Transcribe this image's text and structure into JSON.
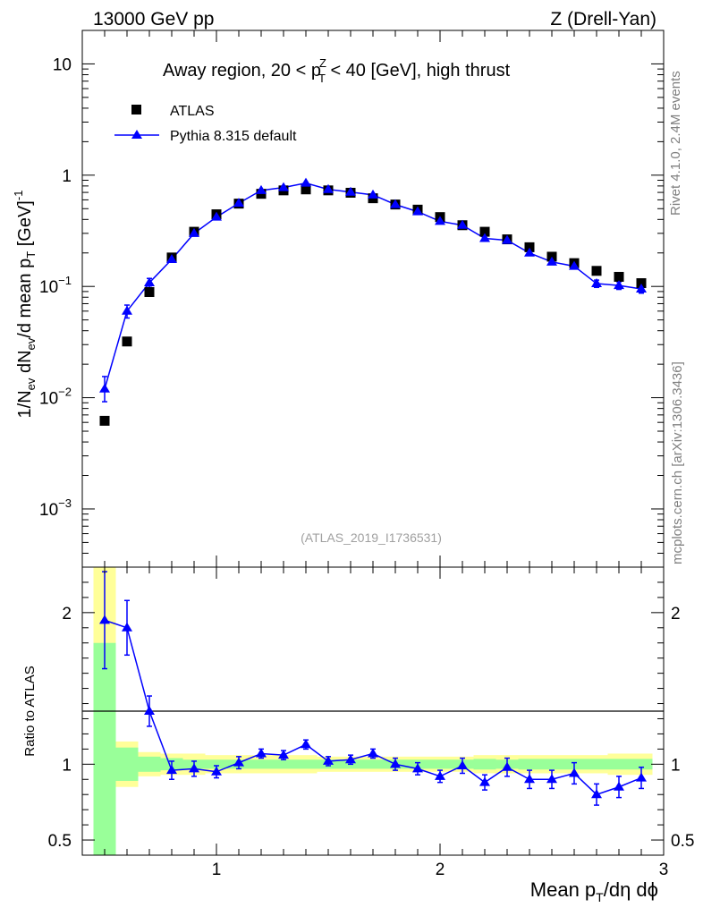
{
  "header": {
    "energy": "13000 GeV pp",
    "process": "Z (Drell-Yan)"
  },
  "side_labels": {
    "rivet": "Rivet 4.1.0,  2.4M events",
    "source": "mcplots.cern.ch [arXiv:1306.3436]"
  },
  "chart_data": {
    "type": "scatter",
    "title": {
      "main": "Away region, 20 < p",
      "sup": "Z",
      "sub": "T",
      "tail": " < 40 [GeV], high thrust"
    },
    "analysis_id": "(ATLAS_2019_I1736531)",
    "legend": {
      "placement": "top-left",
      "entries": [
        "ATLAS",
        "Pythia 8.315 default"
      ]
    },
    "xlabel": {
      "pre": "Mean p",
      "sub": "T",
      "post": "/dη dϕ"
    },
    "ylabel": {
      "t1": "1/N",
      "s1": "ev",
      "t2": " dN",
      "s2": "ev",
      "t3": "/d mean p",
      "s3": "T",
      "t4": " [GeV]",
      "sup": "-1"
    },
    "ratio_ylabel": "Ratio to ATLAS",
    "xlim": [
      0.4,
      3.0
    ],
    "ylim": [
      0.0003,
      20
    ],
    "yscale": "log",
    "ratio_ylim": [
      0.4,
      2.3
    ],
    "x_ticks": [
      {
        "v": 1,
        "label": "1"
      },
      {
        "v": 2,
        "label": "2"
      },
      {
        "v": 3,
        "label": "3"
      }
    ],
    "y_ticks": [
      {
        "v": 10,
        "base": "10",
        "exp": ""
      },
      {
        "v": 1,
        "base": "1",
        "exp": ""
      },
      {
        "v": 0.1,
        "base": "10",
        "exp": "−1"
      },
      {
        "v": 0.01,
        "base": "10",
        "exp": "−2"
      },
      {
        "v": 0.001,
        "base": "10",
        "exp": "−3"
      }
    ],
    "ratio_ticks": [
      {
        "v": 2,
        "label": "2"
      },
      {
        "v": 1,
        "label": "1"
      },
      {
        "v": 0.5,
        "label": "0.5"
      }
    ],
    "x": [
      0.5,
      0.6,
      0.7,
      0.8,
      0.9,
      1.0,
      1.1,
      1.2,
      1.3,
      1.4,
      1.5,
      1.6,
      1.7,
      1.8,
      1.9,
      2.0,
      2.1,
      2.2,
      2.3,
      2.4,
      2.5,
      2.6,
      2.7,
      2.8,
      2.9
    ],
    "series": [
      {
        "name": "ATLAS",
        "color": "#000000",
        "marker": "square",
        "values": [
          0.0062,
          0.032,
          0.089,
          0.182,
          0.31,
          0.445,
          0.555,
          0.68,
          0.73,
          0.745,
          0.73,
          0.695,
          0.62,
          0.545,
          0.49,
          0.42,
          0.355,
          0.31,
          0.265,
          0.225,
          0.185,
          0.162,
          0.138,
          0.122,
          0.107
        ]
      },
      {
        "name": "Pythia 8.315 default",
        "color": "#0000ff",
        "marker": "triangle",
        "values": [
          0.012,
          0.06,
          0.108,
          0.175,
          0.3,
          0.42,
          0.56,
          0.73,
          0.775,
          0.85,
          0.745,
          0.705,
          0.665,
          0.545,
          0.47,
          0.385,
          0.355,
          0.27,
          0.26,
          0.2,
          0.166,
          0.152,
          0.106,
          0.102,
          0.095
        ],
        "err_lo": [
          0.0028,
          0.008,
          0.01,
          0.01,
          0.013,
          0.015,
          0.015,
          0.015,
          0.015,
          0.015,
          0.015,
          0.015,
          0.015,
          0.012,
          0.011,
          0.01,
          0.009,
          0.008,
          0.008,
          0.007,
          0.007,
          0.007,
          0.008,
          0.008,
          0.008
        ],
        "err_hi": [
          0.0035,
          0.008,
          0.01,
          0.01,
          0.013,
          0.015,
          0.015,
          0.015,
          0.015,
          0.015,
          0.015,
          0.015,
          0.015,
          0.012,
          0.011,
          0.01,
          0.009,
          0.008,
          0.008,
          0.007,
          0.007,
          0.007,
          0.008,
          0.008,
          0.008
        ],
        "ratio": [
          1.95,
          1.9,
          1.35,
          0.96,
          0.97,
          0.95,
          1.01,
          1.07,
          1.06,
          1.13,
          1.02,
          1.03,
          1.07,
          1.0,
          0.97,
          0.92,
          0.99,
          0.88,
          0.98,
          0.9,
          0.9,
          0.94,
          0.8,
          0.85,
          0.91
        ],
        "ratio_err": [
          0.32,
          0.18,
          0.1,
          0.06,
          0.05,
          0.04,
          0.04,
          0.03,
          0.03,
          0.03,
          0.03,
          0.03,
          0.03,
          0.04,
          0.04,
          0.04,
          0.05,
          0.05,
          0.06,
          0.06,
          0.06,
          0.07,
          0.07,
          0.07,
          0.07
        ]
      }
    ],
    "bands": {
      "edges": [
        0.45,
        0.55,
        0.65,
        0.75,
        0.85,
        0.95,
        1.05,
        1.15,
        1.25,
        1.35,
        1.45,
        1.55,
        1.65,
        1.75,
        1.85,
        1.95,
        2.05,
        2.15,
        2.25,
        2.35,
        2.45,
        2.55,
        2.65,
        2.75,
        2.85,
        2.95
      ],
      "inner": [
        0.8,
        0.11,
        0.05,
        0.04,
        0.03,
        0.03,
        0.03,
        0.03,
        0.03,
        0.03,
        0.03,
        0.03,
        0.03,
        0.03,
        0.03,
        0.03,
        0.03,
        0.035,
        0.03,
        0.035,
        0.035,
        0.035,
        0.035,
        0.035,
        0.035
      ],
      "outer": [
        1.3,
        0.15,
        0.08,
        0.07,
        0.07,
        0.06,
        0.06,
        0.06,
        0.06,
        0.06,
        0.05,
        0.05,
        0.05,
        0.05,
        0.05,
        0.05,
        0.05,
        0.06,
        0.06,
        0.06,
        0.06,
        0.06,
        0.06,
        0.07,
        0.07
      ]
    },
    "colors": {
      "inner_band": "#99ff99",
      "outer_band": "#ffff99",
      "mc": "#0000ff",
      "data": "#000000"
    }
  }
}
